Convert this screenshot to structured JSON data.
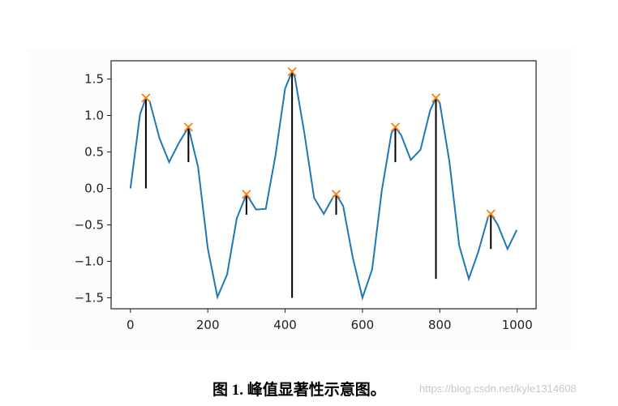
{
  "chart_data": {
    "type": "line",
    "x": [
      0,
      25,
      40,
      50,
      75,
      100,
      125,
      150,
      175,
      200,
      225,
      250,
      275,
      300,
      325,
      350,
      375,
      400,
      418,
      425,
      450,
      475,
      500,
      525,
      532,
      550,
      575,
      600,
      625,
      650,
      675,
      685,
      700,
      725,
      750,
      775,
      790,
      800,
      825,
      850,
      875,
      900,
      925,
      932,
      950,
      975,
      999
    ],
    "series": [
      {
        "color": "#1f77b4",
        "values": [
          0,
          1.02,
          1.24,
          1.19,
          0.69,
          0.36,
          0.62,
          0.84,
          0.29,
          -0.82,
          -1.49,
          -1.18,
          -0.41,
          -0.08,
          -0.29,
          -0.28,
          0.45,
          1.37,
          1.6,
          1.53,
          0.75,
          -0.13,
          -0.35,
          -0.11,
          -0.08,
          -0.24,
          -0.95,
          -1.5,
          -1.11,
          -0.03,
          0.76,
          0.84,
          0.73,
          0.39,
          0.53,
          1.07,
          1.24,
          1.17,
          0.36,
          -0.78,
          -1.24,
          -0.86,
          -0.39,
          -0.35,
          -0.5,
          -0.83,
          -0.57
        ]
      }
    ],
    "peaks": {
      "color": "#ff7f0e",
      "x": [
        40,
        150,
        300,
        418,
        532,
        685,
        790,
        932
      ],
      "values": [
        1.24,
        0.84,
        -0.08,
        1.6,
        -0.08,
        0.84,
        1.24,
        -0.35
      ],
      "prominences": [
        1.24,
        0.48,
        0.28,
        3.1,
        0.28,
        0.48,
        2.48,
        0.48
      ]
    },
    "contour_color": "#000000",
    "xlim": [
      -49.95,
      1048.95
    ],
    "ylim": [
      -1.65,
      1.75
    ],
    "xticks": [
      0,
      200,
      400,
      600,
      800,
      1000
    ],
    "yticks": [
      {
        "value": 1.5,
        "label": "1.5"
      },
      {
        "value": 1.0,
        "label": "1.0"
      },
      {
        "value": 0.5,
        "label": "0.5"
      },
      {
        "value": 0.0,
        "label": "0.0"
      },
      {
        "value": -0.5,
        "label": "−0.5"
      },
      {
        "value": -1.0,
        "label": "−1.0"
      },
      {
        "value": -1.5,
        "label": "−1.5"
      }
    ]
  },
  "caption": "图 1. 峰值显著性示意图。",
  "watermark": "https://blog.csdn.net/kyle1314608"
}
